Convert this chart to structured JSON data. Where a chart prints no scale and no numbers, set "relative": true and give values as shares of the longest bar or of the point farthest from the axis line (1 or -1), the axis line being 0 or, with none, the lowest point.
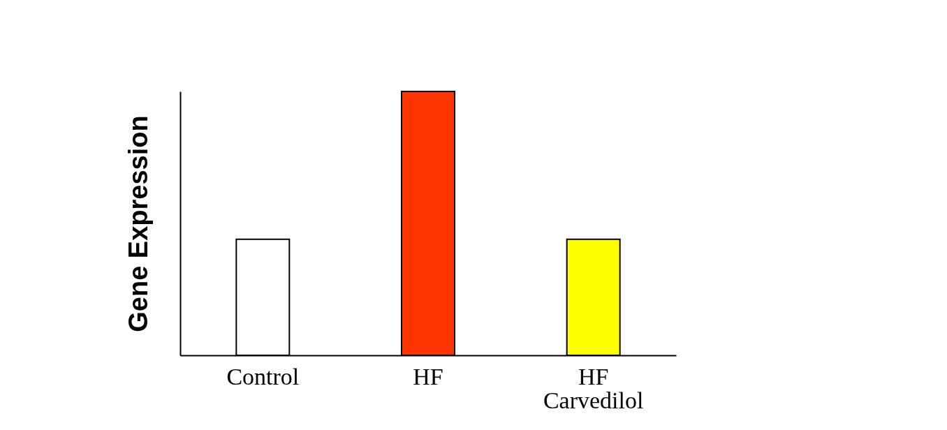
{
  "chart_data": {
    "type": "bar",
    "ylabel": "Gene Expression",
    "categories": [
      "Control",
      "HF",
      "HF Carvedilol"
    ],
    "values": [
      0.44,
      1,
      0.44
    ],
    "colors": [
      "#ffffff",
      "#ff3300",
      "#ffff00"
    ],
    "relative": true
  }
}
